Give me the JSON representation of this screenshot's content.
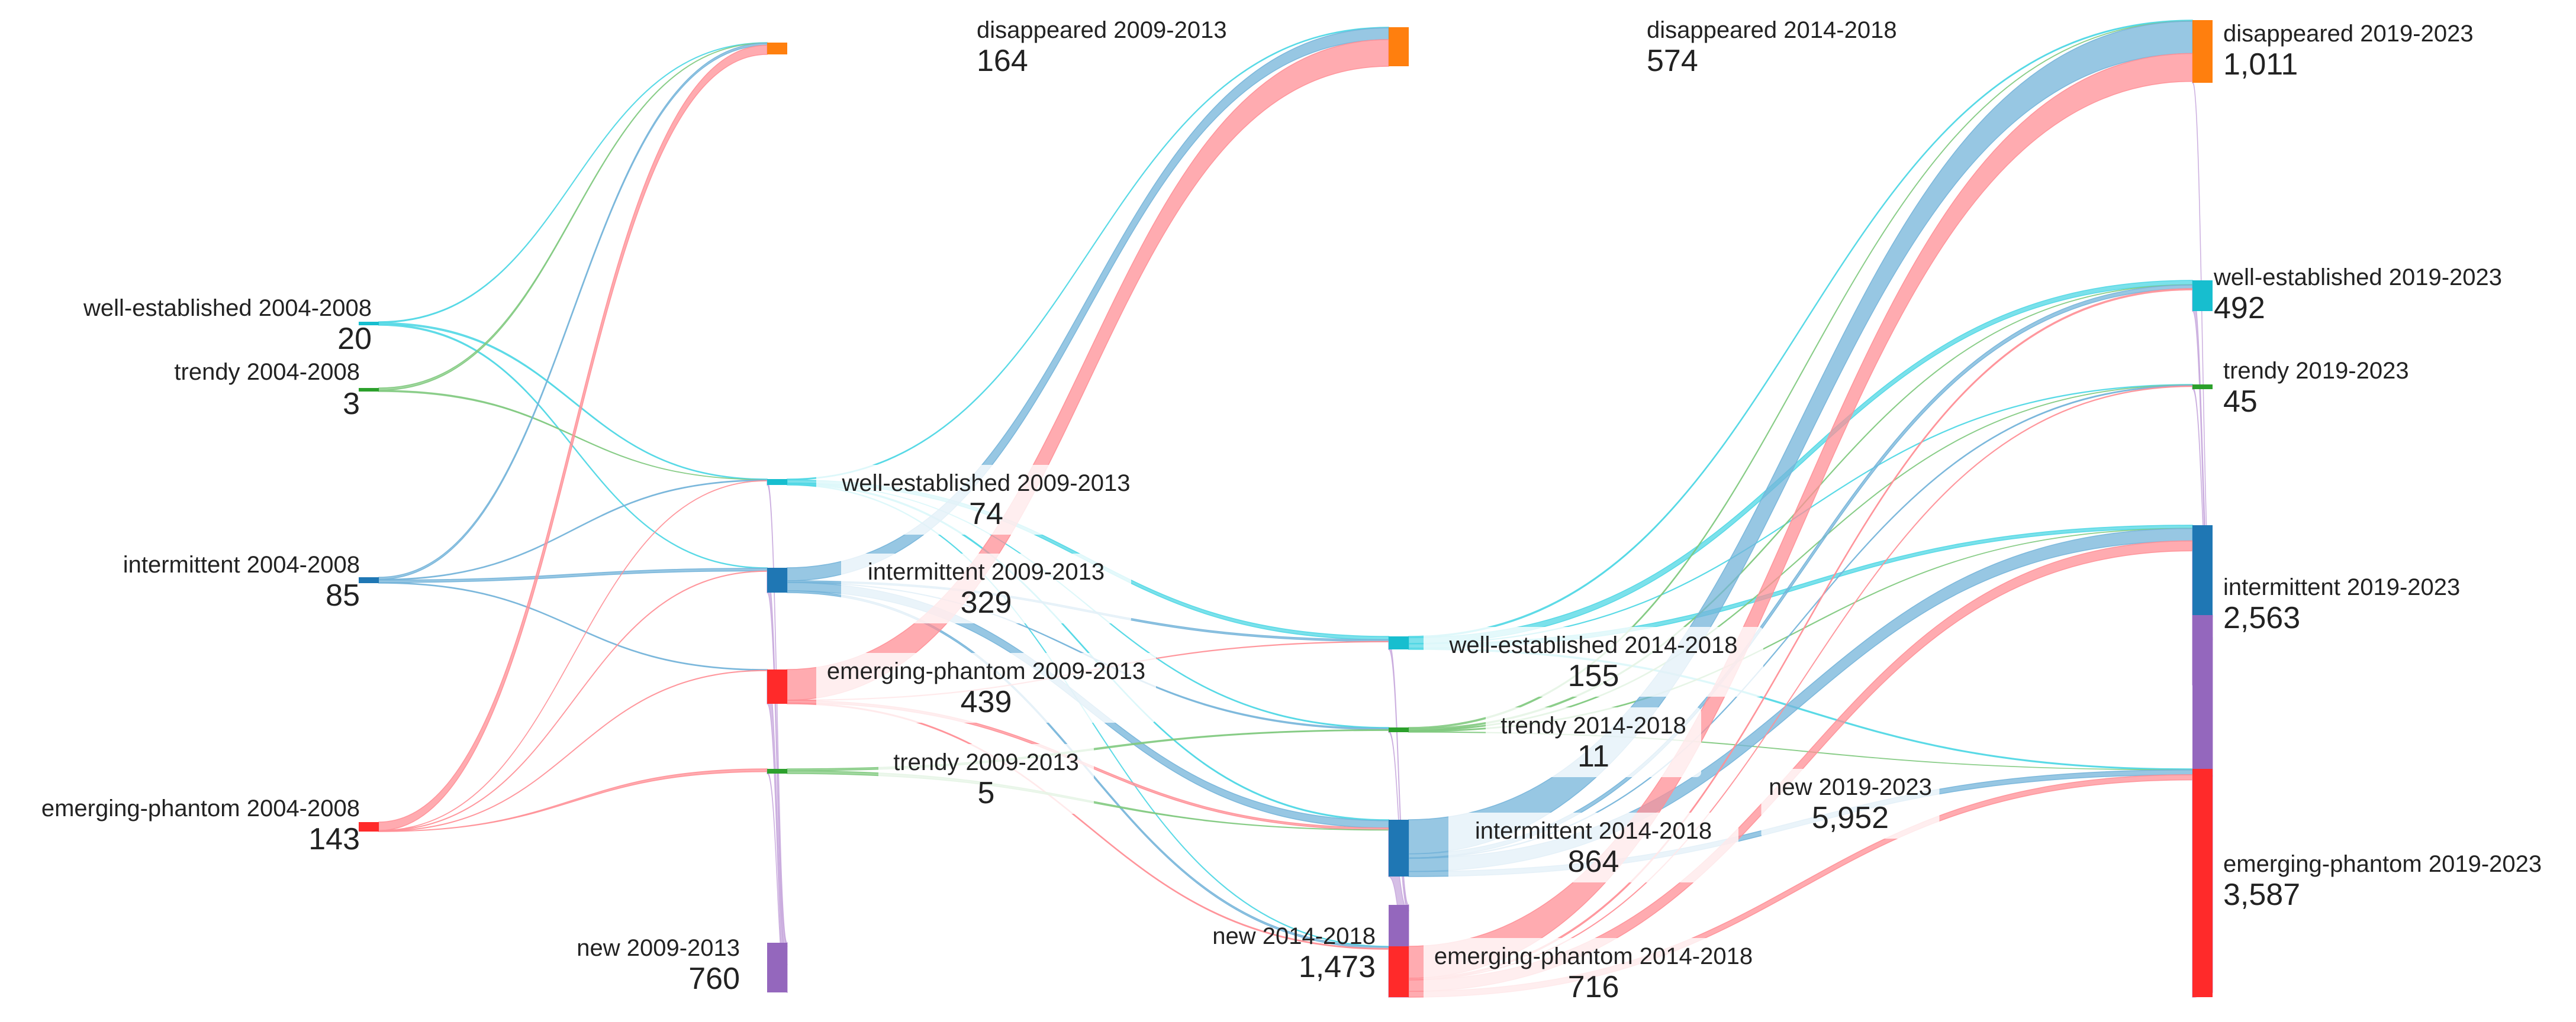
{
  "chart_data": {
    "type": "sankey",
    "title": "",
    "columns": [
      "2004-2008",
      "2009-2013",
      "2014-2018",
      "2019-2023"
    ],
    "colors": {
      "disappeared": "#ff7f0e",
      "well-established": "#17becf",
      "trendy": "#2ca02c",
      "intermittent": "#1f77b4",
      "emerging-phantom": "#ff2a2a",
      "new": "#9467bd"
    },
    "link_colors": {
      "disappeared": "#ffc08a",
      "well-established": "#4fd7e4",
      "trendy": "#80c97e",
      "intermittent": "#74b4d9",
      "emerging-phantom": "#ff8f96",
      "new": "#c8a9dd"
    },
    "nodes": [
      {
        "id": "we0",
        "label": "well-established 2004-2008",
        "value_label": "20",
        "value": 20,
        "column": 0,
        "category": "well-established"
      },
      {
        "id": "tr0",
        "label": "trendy 2004-2008",
        "value_label": "3",
        "value": 3,
        "column": 0,
        "category": "trendy"
      },
      {
        "id": "in0",
        "label": "intermittent 2004-2008",
        "value_label": "85",
        "value": 85,
        "column": 0,
        "category": "intermittent"
      },
      {
        "id": "ep0",
        "label": "emerging-phantom 2004-2008",
        "value_label": "143",
        "value": 143,
        "column": 0,
        "category": "emerging-phantom"
      },
      {
        "id": "di1",
        "label": "disappeared 2009-2013",
        "value_label": "164",
        "value": 164,
        "column": 1,
        "category": "disappeared"
      },
      {
        "id": "we1",
        "label": "well-established 2009-2013",
        "value_label": "74",
        "value": 74,
        "column": 1,
        "category": "well-established"
      },
      {
        "id": "in1",
        "label": "intermittent 2009-2013",
        "value_label": "329",
        "value": 329,
        "column": 1,
        "category": "intermittent"
      },
      {
        "id": "ep1",
        "label": "emerging-phantom 2009-2013",
        "value_label": "439",
        "value": 439,
        "column": 1,
        "category": "emerging-phantom"
      },
      {
        "id": "tr1",
        "label": "trendy 2009-2013",
        "value_label": "5",
        "value": 5,
        "column": 1,
        "category": "trendy"
      },
      {
        "id": "nw1",
        "label": "new 2009-2013",
        "value_label": "760",
        "value": 760,
        "column": 1,
        "category": "new"
      },
      {
        "id": "di2",
        "label": "disappeared 2014-2018",
        "value_label": "574",
        "value": 574,
        "column": 2,
        "category": "disappeared"
      },
      {
        "id": "we2",
        "label": "well-established 2014-2018",
        "value_label": "155",
        "value": 155,
        "column": 2,
        "category": "well-established"
      },
      {
        "id": "tr2",
        "label": "trendy 2014-2018",
        "value_label": "11",
        "value": 11,
        "column": 2,
        "category": "trendy"
      },
      {
        "id": "in2",
        "label": "intermittent 2014-2018",
        "value_label": "864",
        "value": 864,
        "column": 2,
        "category": "intermittent"
      },
      {
        "id": "nw2",
        "label": "new 2014-2018",
        "value_label": "1,473",
        "value": 1473,
        "column": 2,
        "category": "new"
      },
      {
        "id": "ep2",
        "label": "emerging-phantom 2014-2018",
        "value_label": "716",
        "value": 716,
        "column": 2,
        "category": "emerging-phantom"
      },
      {
        "id": "di3",
        "label": "disappeared 2019-2023",
        "value_label": "1,011",
        "value": 1011,
        "column": 3,
        "category": "disappeared"
      },
      {
        "id": "we3",
        "label": "well-established 2019-2023",
        "value_label": "492",
        "value": 492,
        "column": 3,
        "category": "well-established"
      },
      {
        "id": "tr3",
        "label": "trendy 2019-2023",
        "value_label": "45",
        "value": 45,
        "column": 3,
        "category": "trendy"
      },
      {
        "id": "in3",
        "label": "intermittent 2019-2023",
        "value_label": "2,563",
        "value": 2563,
        "column": 3,
        "category": "intermittent"
      },
      {
        "id": "nw3",
        "label": "new 2019-2023",
        "value_label": "5,952",
        "value": 5952,
        "column": 3,
        "category": "new"
      },
      {
        "id": "ep3",
        "label": "emerging-phantom 2019-2023",
        "value_label": "3,587",
        "value": 3587,
        "column": 3,
        "category": "emerging-phantom"
      }
    ],
    "links": [
      {
        "source": "we0",
        "target": "di1",
        "value": 5
      },
      {
        "source": "we0",
        "target": "we1",
        "value": 8
      },
      {
        "source": "we0",
        "target": "in1",
        "value": 7
      },
      {
        "source": "tr0",
        "target": "di1",
        "value": 2
      },
      {
        "source": "tr0",
        "target": "we1",
        "value": 1
      },
      {
        "source": "in0",
        "target": "di1",
        "value": 30
      },
      {
        "source": "in0",
        "target": "we1",
        "value": 10
      },
      {
        "source": "in0",
        "target": "in1",
        "value": 35
      },
      {
        "source": "in0",
        "target": "ep1",
        "value": 10
      },
      {
        "source": "ep0",
        "target": "di1",
        "value": 127
      },
      {
        "source": "ep0",
        "target": "we1",
        "value": 3
      },
      {
        "source": "ep0",
        "target": "in1",
        "value": 5
      },
      {
        "source": "ep0",
        "target": "ep1",
        "value": 5
      },
      {
        "source": "ep0",
        "target": "tr1",
        "value": 3
      },
      {
        "source": "nw1",
        "target": "we1",
        "value": 52
      },
      {
        "source": "nw1",
        "target": "in1",
        "value": 282
      },
      {
        "source": "nw1",
        "target": "ep1",
        "value": 424
      },
      {
        "source": "nw1",
        "target": "tr1",
        "value": 2
      },
      {
        "source": "we1",
        "target": "di2",
        "value": 10
      },
      {
        "source": "we1",
        "target": "we2",
        "value": 40
      },
      {
        "source": "we1",
        "target": "tr2",
        "value": 2
      },
      {
        "source": "we1",
        "target": "in2",
        "value": 15
      },
      {
        "source": "we1",
        "target": "ep2",
        "value": 7
      },
      {
        "source": "in1",
        "target": "di2",
        "value": 172
      },
      {
        "source": "in1",
        "target": "we2",
        "value": 20
      },
      {
        "source": "in1",
        "target": "tr2",
        "value": 3
      },
      {
        "source": "in1",
        "target": "in2",
        "value": 110
      },
      {
        "source": "in1",
        "target": "ep2",
        "value": 24
      },
      {
        "source": "ep1",
        "target": "di2",
        "value": 392
      },
      {
        "source": "ep1",
        "target": "we2",
        "value": 5
      },
      {
        "source": "ep1",
        "target": "in2",
        "value": 30
      },
      {
        "source": "ep1",
        "target": "ep2",
        "value": 12
      },
      {
        "source": "tr1",
        "target": "tr2",
        "value": 2
      },
      {
        "source": "tr1",
        "target": "in2",
        "value": 3
      },
      {
        "source": "nw2",
        "target": "we2",
        "value": 90
      },
      {
        "source": "nw2",
        "target": "tr2",
        "value": 4
      },
      {
        "source": "nw2",
        "target": "in2",
        "value": 706
      },
      {
        "source": "nw2",
        "target": "ep2",
        "value": 673
      },
      {
        "source": "we2",
        "target": "di3",
        "value": 15
      },
      {
        "source": "we2",
        "target": "we3",
        "value": 70
      },
      {
        "source": "we2",
        "target": "tr3",
        "value": 5
      },
      {
        "source": "we2",
        "target": "in3",
        "value": 50
      },
      {
        "source": "we2",
        "target": "ep3",
        "value": 15
      },
      {
        "source": "tr2",
        "target": "di3",
        "value": 3
      },
      {
        "source": "tr2",
        "target": "we3",
        "value": 3
      },
      {
        "source": "tr2",
        "target": "tr3",
        "value": 2
      },
      {
        "source": "tr2",
        "target": "in3",
        "value": 2
      },
      {
        "source": "tr2",
        "target": "ep3",
        "value": 1
      },
      {
        "source": "in2",
        "target": "di3",
        "value": 520
      },
      {
        "source": "in2",
        "target": "we3",
        "value": 60
      },
      {
        "source": "in2",
        "target": "tr3",
        "value": 8
      },
      {
        "source": "in2",
        "target": "in3",
        "value": 200
      },
      {
        "source": "in2",
        "target": "ep3",
        "value": 76
      },
      {
        "source": "ep2",
        "target": "di3",
        "value": 450
      },
      {
        "source": "ep2",
        "target": "we3",
        "value": 20
      },
      {
        "source": "ep2",
        "target": "tr3",
        "value": 5
      },
      {
        "source": "ep2",
        "target": "in3",
        "value": 160
      },
      {
        "source": "ep2",
        "target": "ep3",
        "value": 81
      },
      {
        "source": "nw3",
        "target": "di3",
        "value": 23
      },
      {
        "source": "nw3",
        "target": "we3",
        "value": 339
      },
      {
        "source": "nw3",
        "target": "tr3",
        "value": 25
      },
      {
        "source": "nw3",
        "target": "in3",
        "value": 2151
      },
      {
        "source": "nw3",
        "target": "ep3",
        "value": 3414
      }
    ]
  }
}
